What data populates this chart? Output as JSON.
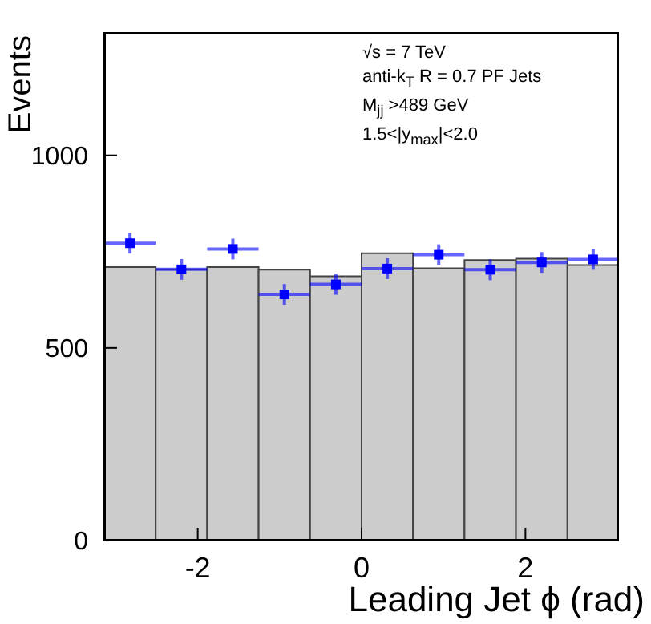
{
  "chart_data": {
    "type": "histogram",
    "xlabel": "Leading Jet ϕ (rad)",
    "ylabel": "Events",
    "annotations": [
      "√s = 7 TeV",
      "anti-k$_{T}$ R = 0.7 PF Jets",
      "M$_{jj}$ >489 GeV",
      "1.5<|y$_{max}$|<2.0"
    ],
    "xlim": [
      -3.1416,
      3.1416
    ],
    "xticks": [
      -2,
      0,
      2
    ],
    "ylim": [
      0,
      1320
    ],
    "yticks": [
      0,
      500,
      1000
    ],
    "bins": [
      -3.1416,
      -2.5133,
      -1.885,
      -1.2566,
      -0.6283,
      0,
      0.6283,
      1.2566,
      1.885,
      2.5133,
      3.1416
    ],
    "series": [
      {
        "color": "#cccccc",
        "values": [
          710,
          704,
          710,
          703,
          686,
          746,
          707,
          728,
          732,
          715
        ]
      },
      {
        "type": "scatter",
        "color": "#0000ff",
        "marker": "square",
        "x": [
          -2.827,
          -2.199,
          -1.571,
          -0.942,
          -0.314,
          0.314,
          0.942,
          1.571,
          2.199,
          2.827
        ],
        "values": [
          772,
          704,
          757,
          639,
          665,
          706,
          742,
          703,
          722,
          730
        ],
        "errors": [
          27,
          27,
          27,
          27,
          27,
          27,
          27,
          27,
          27,
          27
        ],
        "xerrors": [
          0.314,
          0.314,
          0.314,
          0.314,
          0.314,
          0.314,
          0.314,
          0.314,
          0.314,
          0.314
        ]
      }
    ]
  }
}
